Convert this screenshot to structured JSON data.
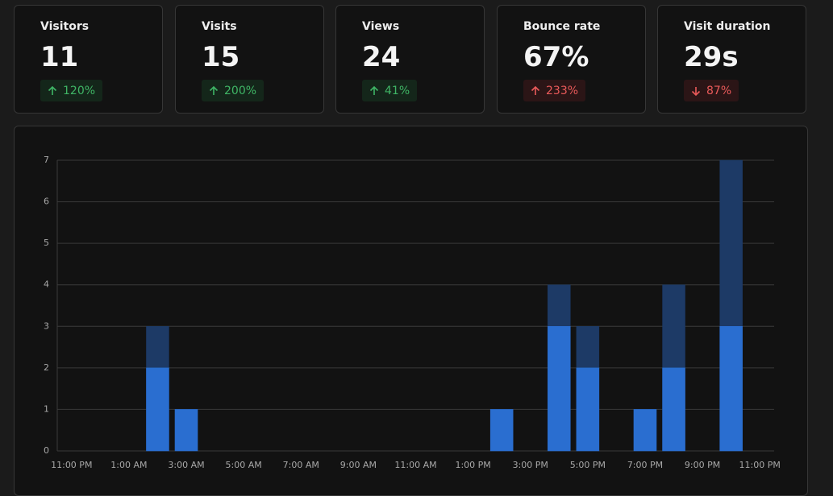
{
  "metrics": [
    {
      "label": "Visitors",
      "value": "11",
      "change": "120%"
    },
    {
      "label": "Visits",
      "value": "15",
      "change": "200%"
    },
    {
      "label": "Views",
      "value": "24",
      "change": "41%"
    },
    {
      "label": "Bounce rate",
      "value": "67%",
      "change": "233%"
    },
    {
      "label": "Visit duration",
      "value": "29s",
      "change": "87%"
    }
  ],
  "chart_data": {
    "type": "bar",
    "categories": [
      "11:00 PM",
      null,
      "1:00 AM",
      null,
      "3:00 AM",
      null,
      "5:00 AM",
      null,
      "7:00 AM",
      null,
      "9:00 AM",
      null,
      "11:00 AM",
      null,
      "1:00 PM",
      null,
      "3:00 PM",
      null,
      "5:00 PM",
      null,
      "7:00 PM",
      null,
      "9:00 PM",
      null,
      "11:00 PM"
    ],
    "series": [
      {
        "color": "#1d3a66",
        "values": [
          null,
          null,
          null,
          3,
          1,
          null,
          null,
          null,
          null,
          null,
          null,
          null,
          null,
          null,
          null,
          1,
          null,
          4,
          3,
          null,
          1,
          4,
          null,
          7,
          null
        ]
      },
      {
        "color": "#2a6ed0",
        "values": [
          null,
          null,
          null,
          2,
          1,
          null,
          null,
          null,
          null,
          null,
          null,
          null,
          null,
          null,
          null,
          1,
          null,
          3,
          2,
          null,
          1,
          2,
          null,
          3,
          null
        ]
      }
    ],
    "ylim": [
      0,
      7
    ],
    "yticks": [
      0,
      1,
      2,
      3,
      4,
      5,
      6,
      7
    ],
    "grid": true
  }
}
